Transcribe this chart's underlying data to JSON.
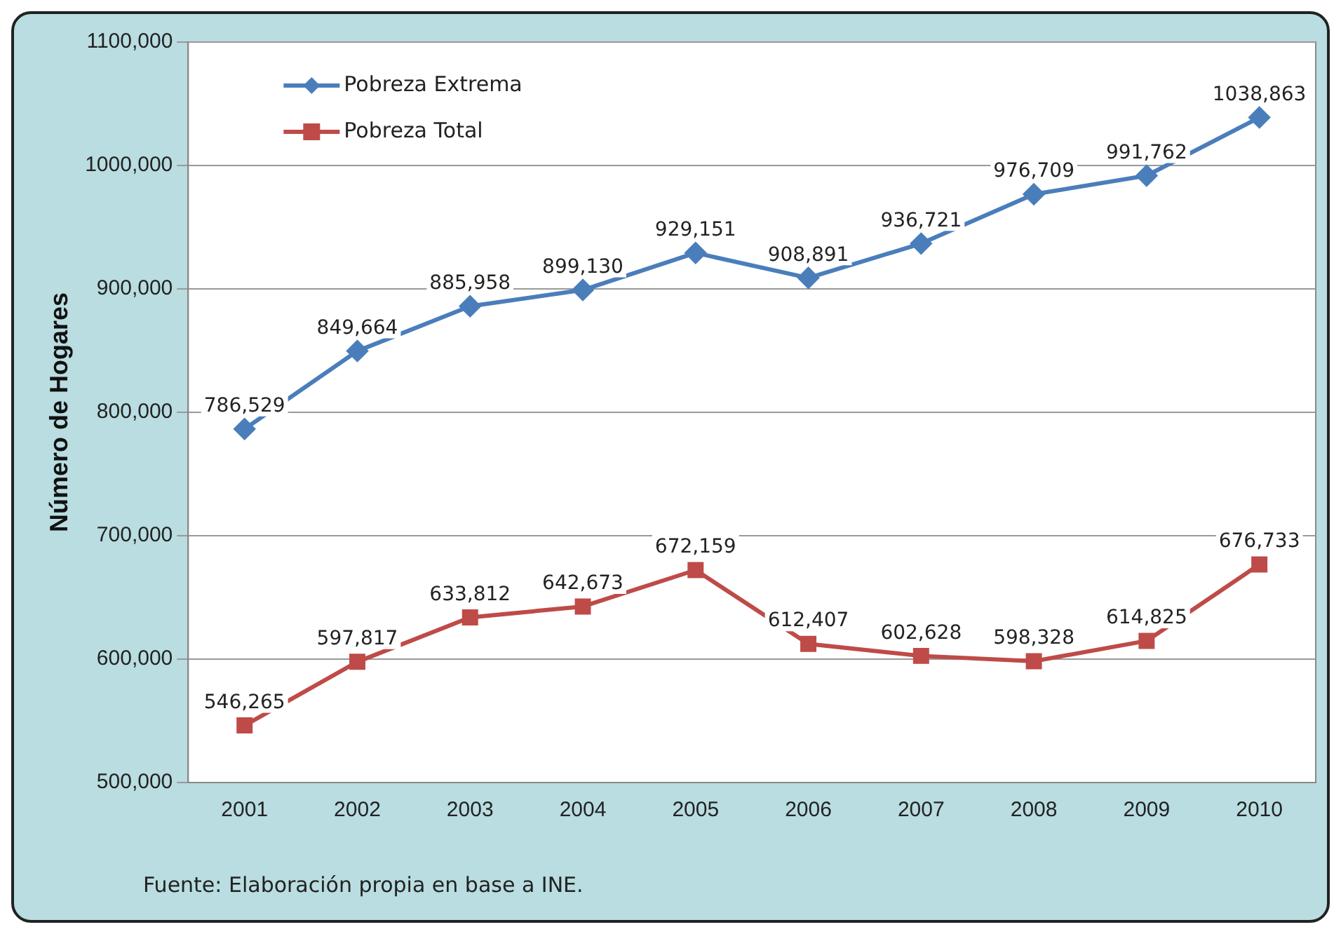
{
  "chart_data": {
    "type": "line",
    "ylabel": "Número de Hogares",
    "categories": [
      "2001",
      "2002",
      "2003",
      "2004",
      "2005",
      "2006",
      "2007",
      "2008",
      "2009",
      "2010"
    ],
    "series": [
      {
        "name": "Pobreza Extrema",
        "color": "#4a7ebb",
        "marker": "diamond",
        "values": [
          786529,
          849664,
          885958,
          899130,
          929151,
          908891,
          936721,
          976709,
          991762,
          1038863
        ],
        "value_labels": [
          "786,529",
          "849,664",
          "885,958",
          "899,130",
          "929,151",
          "908,891",
          "936,721",
          "976,709",
          "991,762",
          "1038,863"
        ]
      },
      {
        "name": "Pobreza Total",
        "color": "#be4b48",
        "marker": "square",
        "values": [
          546265,
          597817,
          633812,
          642673,
          672159,
          612407,
          602628,
          598328,
          614825,
          676733
        ],
        "value_labels": [
          "546,265",
          "597,817",
          "633,812",
          "642,673",
          "672,159",
          "612,407",
          "602,628",
          "598,328",
          "614,825",
          "676,733"
        ]
      }
    ],
    "ylim": [
      500000,
      1100000
    ],
    "yticks": [
      {
        "value": 500000,
        "label": "500,000"
      },
      {
        "value": 600000,
        "label": "600,000"
      },
      {
        "value": 700000,
        "label": "700,000"
      },
      {
        "value": 800000,
        "label": "800,000"
      },
      {
        "value": 900000,
        "label": "900,000"
      },
      {
        "value": 1000000,
        "label": "1000,000"
      },
      {
        "value": 1100000,
        "label": "1100,000"
      }
    ],
    "grid": "y",
    "legend": "top left",
    "line_style": "solid",
    "annotations": [
      "Fuente: Elaboración propia en base a INE."
    ]
  }
}
